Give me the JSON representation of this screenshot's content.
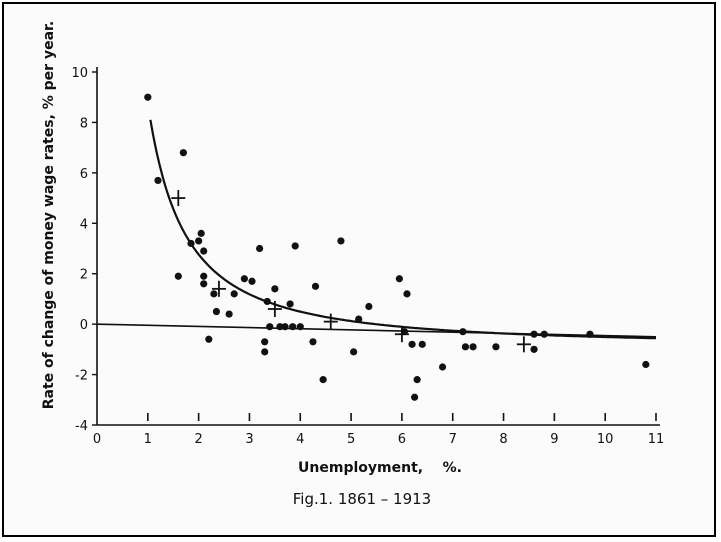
{
  "chart_data": {
    "type": "scatter",
    "title": "",
    "caption": "Fig.1. 1861 – 1913",
    "xlabel": "Unemployment,    %.",
    "ylabel": "Rate of change of money wage rates, % per year.",
    "xlim": [
      0,
      11
    ],
    "ylim": [
      -4,
      10
    ],
    "x_ticks": [
      0,
      1,
      2,
      3,
      4,
      5,
      6,
      7,
      8,
      9,
      10,
      11
    ],
    "y_ticks": [
      -4,
      -2,
      0,
      2,
      4,
      6,
      8,
      10
    ],
    "grid": false,
    "series": [
      {
        "marker": "dot",
        "points": [
          [
            1.0,
            9.0
          ],
          [
            1.2,
            5.7
          ],
          [
            1.6,
            1.9
          ],
          [
            1.7,
            6.8
          ],
          [
            1.85,
            3.2
          ],
          [
            2.0,
            3.3
          ],
          [
            2.05,
            3.6
          ],
          [
            2.1,
            2.9
          ],
          [
            2.1,
            1.9
          ],
          [
            2.1,
            1.6
          ],
          [
            2.2,
            -0.6
          ],
          [
            2.3,
            1.2
          ],
          [
            2.35,
            0.5
          ],
          [
            2.6,
            0.4
          ],
          [
            2.7,
            1.2
          ],
          [
            2.9,
            1.8
          ],
          [
            3.05,
            1.7
          ],
          [
            3.2,
            3.0
          ],
          [
            3.3,
            -0.7
          ],
          [
            3.3,
            -1.1
          ],
          [
            3.35,
            0.9
          ],
          [
            3.4,
            -0.1
          ],
          [
            3.5,
            1.4
          ],
          [
            3.6,
            -0.1
          ],
          [
            3.7,
            -0.1
          ],
          [
            3.8,
            0.8
          ],
          [
            3.85,
            -0.1
          ],
          [
            3.9,
            3.1
          ],
          [
            4.0,
            -0.1
          ],
          [
            4.25,
            -0.7
          ],
          [
            4.3,
            1.5
          ],
          [
            4.45,
            -2.2
          ],
          [
            4.8,
            3.3
          ],
          [
            5.05,
            -1.1
          ],
          [
            5.15,
            0.2
          ],
          [
            5.35,
            0.7
          ],
          [
            5.95,
            1.8
          ],
          [
            6.05,
            -0.3
          ],
          [
            6.1,
            1.2
          ],
          [
            6.2,
            -0.8
          ],
          [
            6.25,
            -2.9
          ],
          [
            6.3,
            -2.2
          ],
          [
            6.4,
            -0.8
          ],
          [
            6.8,
            -1.7
          ],
          [
            7.2,
            -0.3
          ],
          [
            7.25,
            -0.9
          ],
          [
            7.4,
            -0.9
          ],
          [
            7.85,
            -0.9
          ],
          [
            8.6,
            -0.4
          ],
          [
            8.6,
            -1.0
          ],
          [
            8.8,
            -0.4
          ],
          [
            9.7,
            -0.4
          ],
          [
            10.8,
            -1.6
          ]
        ]
      },
      {
        "marker": "cross",
        "points": [
          [
            1.6,
            5.0
          ],
          [
            2.4,
            1.4
          ],
          [
            3.5,
            0.6
          ],
          [
            4.6,
            0.1
          ],
          [
            6.0,
            -0.4
          ],
          [
            8.4,
            -0.8
          ]
        ]
      }
    ],
    "curve": {
      "formula": "y = 9.638 * x^-1.394 - 0.900",
      "x_range": [
        1.05,
        11
      ]
    },
    "line": {
      "points": [
        [
          0,
          0
        ],
        [
          11,
          -0.5
        ]
      ]
    }
  }
}
